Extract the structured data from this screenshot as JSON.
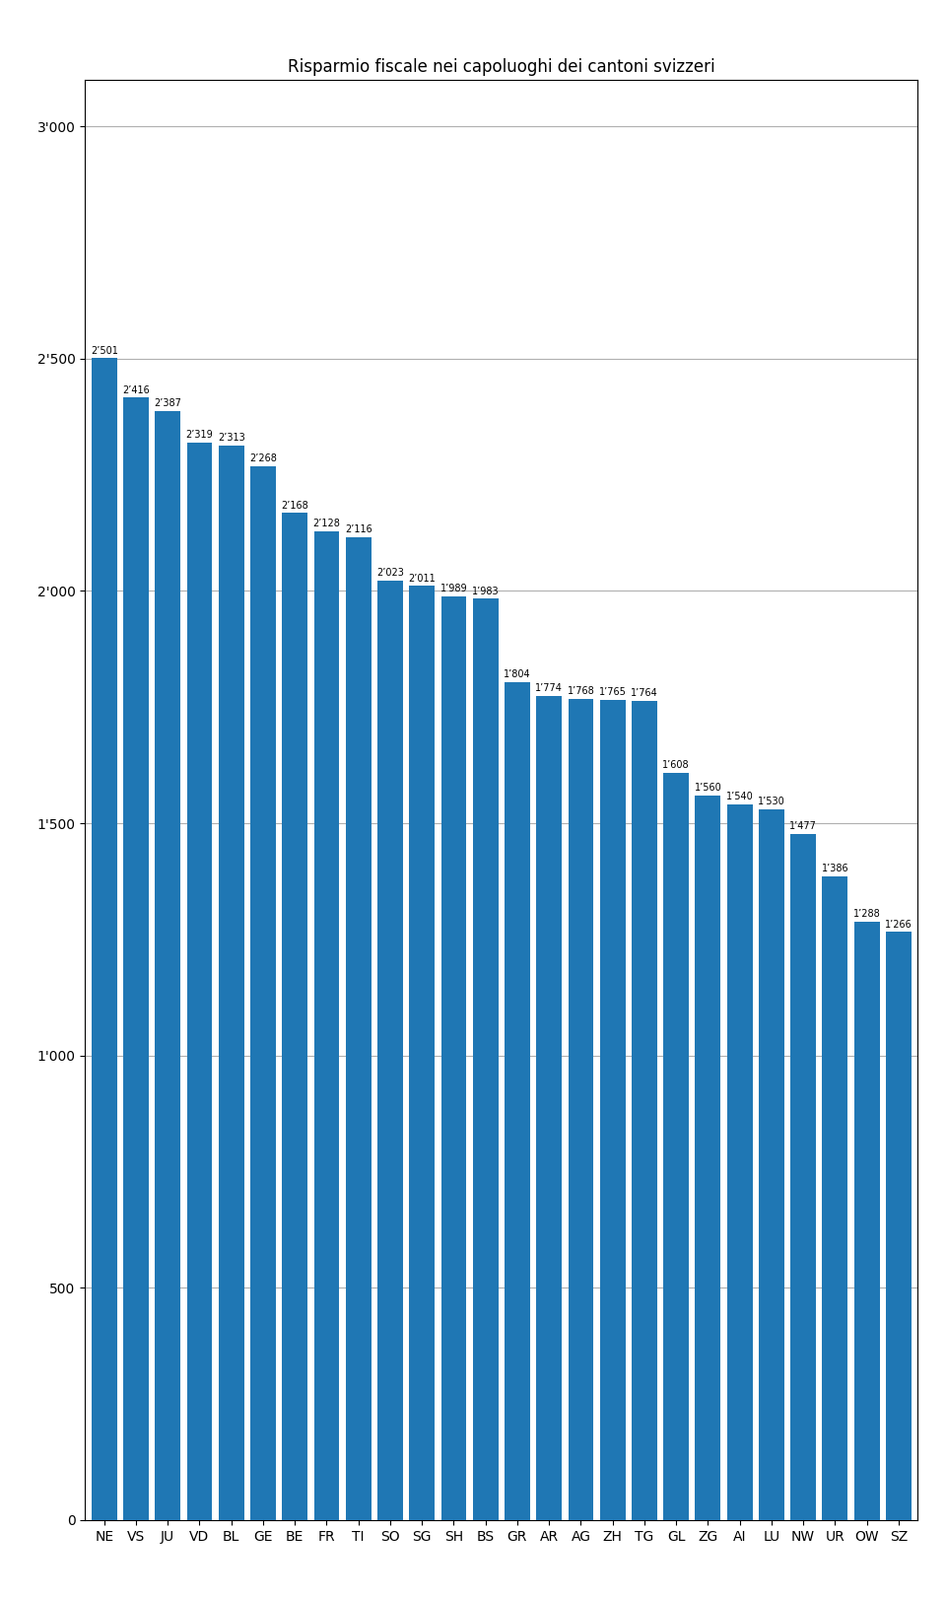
{
  "chart_data": {
    "type": "bar",
    "title": "Risparmio fiscale nei capoluoghi dei cantoni svizzeri",
    "categories": [
      "NE",
      "VS",
      "JU",
      "VD",
      "BL",
      "GE",
      "BE",
      "FR",
      "TI",
      "SO",
      "SG",
      "SH",
      "BS",
      "GR",
      "AR",
      "AG",
      "ZH",
      "TG",
      "GL",
      "ZG",
      "AI",
      "LU",
      "NW",
      "UR",
      "OW",
      "SZ"
    ],
    "values": [
      2501,
      2416,
      2387,
      2319,
      2313,
      2268,
      2168,
      2128,
      2116,
      2023,
      2011,
      1989,
      1983,
      1804,
      1774,
      1768,
      1765,
      1764,
      1608,
      1560,
      1540,
      1530,
      1477,
      1386,
      1288,
      1266
    ],
    "value_labels": [
      "2’501",
      "2’416",
      "2’387",
      "2’319",
      "2’313",
      "2’268",
      "2’168",
      "2’128",
      "2’116",
      "2’023",
      "2’011",
      "1’989",
      "1’983",
      "1’804",
      "1’774",
      "1’768",
      "1’765",
      "1’764",
      "1’608",
      "1’560",
      "1’540",
      "1’530",
      "1’477",
      "1’386",
      "1’288",
      "1’266"
    ],
    "data_labels": true,
    "ylim": [
      0,
      3100
    ],
    "yticks": [
      0,
      500,
      {
        "value": 1000,
        "label": "1'000"
      },
      {
        "value": 1500,
        "label": "1'500"
      },
      {
        "value": 2000,
        "label": "2'000"
      },
      {
        "value": 2500,
        "label": "2'500"
      },
      {
        "value": 3000,
        "label": "3'000"
      }
    ],
    "grid": true
  }
}
